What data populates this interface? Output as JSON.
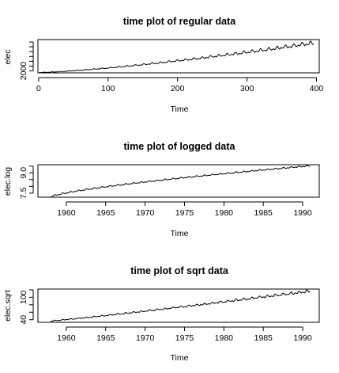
{
  "chart_data": [
    {
      "type": "line",
      "title": "time plot of regular data",
      "xlabel": "Time",
      "ylabel": "elec",
      "xlim": [
        -1,
        404
      ],
      "ylim": [
        1200,
        15000
      ],
      "xticks": [
        0,
        100,
        200,
        300,
        400
      ],
      "xtick_labels": [
        "0",
        "100",
        "200",
        "300",
        "400"
      ],
      "yticks": [
        2000,
        4000,
        6000,
        8000,
        10000,
        12000,
        14000
      ],
      "ytick_labels": [
        "2000",
        "",
        "",
        "",
        "",
        "",
        ""
      ],
      "series": [
        {
          "x_start": 1,
          "x_step": 1,
          "n": 396,
          "base_start": 1350,
          "base_end": 13600,
          "curve": 1.35,
          "season_amp": 0.07,
          "noise": 0.01
        }
      ]
    },
    {
      "type": "line",
      "title": "time plot of logged data",
      "xlabel": "Time",
      "ylabel": "elec.log",
      "xlim": [
        1956.4,
        1992.1
      ],
      "ylim": [
        7.2,
        9.6
      ],
      "xticks": [
        1960,
        1965,
        1970,
        1975,
        1980,
        1985,
        1990
      ],
      "xtick_labels": [
        "1960",
        "1965",
        "1970",
        "1975",
        "1980",
        "1985",
        "1990"
      ],
      "yticks": [
        7.5,
        8.0,
        8.5,
        9.0,
        9.5
      ],
      "ytick_labels": [
        "7.5",
        "",
        "",
        "9.0",
        ""
      ],
      "series": [
        {
          "x_start": 1958.0,
          "x_step": 0.0833333,
          "n": 396,
          "base_start": 7.21,
          "base_end": 9.52,
          "curve": 0.72,
          "season_amp": 0.07,
          "noise": 0.012
        }
      ]
    },
    {
      "type": "line",
      "title": "time plot of sqrt data",
      "xlabel": "Time",
      "ylabel": "elec.sqrt",
      "xlim": [
        1956.4,
        1992.1
      ],
      "ylim": [
        33,
        122
      ],
      "xticks": [
        1960,
        1965,
        1970,
        1975,
        1980,
        1985,
        1990
      ],
      "xtick_labels": [
        "1960",
        "1965",
        "1970",
        "1975",
        "1980",
        "1985",
        "1990"
      ],
      "yticks": [
        40,
        60,
        80,
        100,
        120
      ],
      "ytick_labels": [
        "40",
        "",
        "",
        "100",
        ""
      ],
      "series": [
        {
          "x_start": 1958.0,
          "x_step": 0.0833333,
          "n": 396,
          "base_start": 36.7,
          "base_end": 116.6,
          "curve": 1.1,
          "season_amp": 0.035,
          "noise": 0.01
        }
      ]
    }
  ]
}
